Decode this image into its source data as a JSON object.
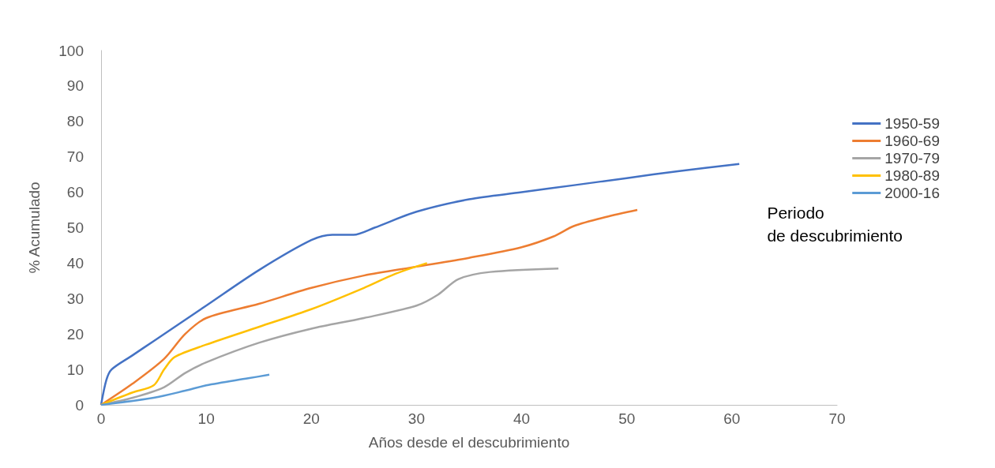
{
  "chart_data": {
    "type": "line",
    "xlabel": "Años desde el descubrimiento",
    "ylabel": "% Acumulado",
    "annotations": [
      "Periodo\nde descubrimiento"
    ],
    "xlim": [
      0,
      70
    ],
    "xticks": [
      0,
      10,
      20,
      30,
      40,
      50,
      60,
      70
    ],
    "ylim": [
      0,
      100
    ],
    "yticks": [
      0,
      10,
      20,
      30,
      40,
      50,
      60,
      70,
      80,
      90,
      100
    ],
    "grid": false,
    "legend": "right",
    "marker": "none",
    "line_style": "solid",
    "series": [
      {
        "name": "1950-59",
        "color": "#4472c4",
        "x": [
          0,
          0.5,
          1,
          3,
          5,
          10,
          15,
          20,
          22,
          24,
          26,
          30,
          35,
          40,
          45,
          50,
          55,
          60.7
        ],
        "values": [
          0,
          7,
          10,
          14,
          18,
          28,
          38,
          46.5,
          48,
          48,
          50,
          54.5,
          58,
          60,
          62,
          64,
          66,
          68
        ]
      },
      {
        "name": "1960-69",
        "color": "#ed7d31",
        "x": [
          0,
          3,
          6,
          8,
          10,
          15,
          20,
          25,
          30,
          35,
          40,
          43,
          45,
          48,
          51
        ],
        "values": [
          0,
          6,
          13,
          20,
          24.5,
          28.5,
          33,
          36.5,
          39,
          41.5,
          44.5,
          47.5,
          50.5,
          53,
          55
        ]
      },
      {
        "name": "1970-79",
        "color": "#a5a5a5",
        "x": [
          0,
          3,
          6,
          8,
          10,
          15,
          20,
          25,
          30,
          32,
          34,
          37,
          43.5
        ],
        "values": [
          0,
          2,
          5,
          9,
          12,
          17.5,
          21.5,
          24.5,
          28,
          31,
          35.5,
          37.5,
          38.5
        ]
      },
      {
        "name": "1980-89",
        "color": "#ffc000",
        "x": [
          0,
          3,
          5,
          6,
          7,
          10,
          15,
          20,
          25,
          28,
          31
        ],
        "values": [
          0,
          3.5,
          5.5,
          10,
          13.5,
          17,
          22,
          27,
          33,
          37,
          40
        ]
      },
      {
        "name": "2000-16",
        "color": "#5b9bd5",
        "x": [
          0,
          5,
          8,
          10,
          14,
          16
        ],
        "values": [
          0,
          2,
          4,
          5.5,
          7.5,
          8.5
        ]
      }
    ]
  }
}
